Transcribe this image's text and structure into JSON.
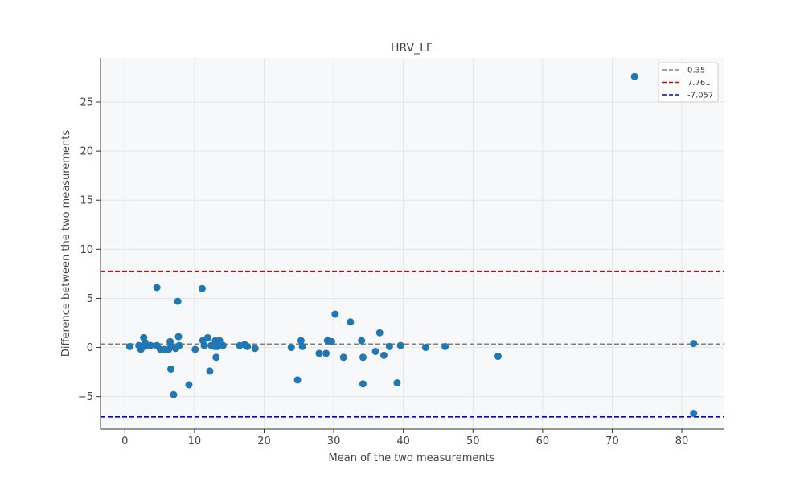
{
  "chart_data": {
    "type": "scatter",
    "title": "HRV_LF",
    "xlabel": "Mean of the two measurements",
    "ylabel": "Difference between the two measurements",
    "xlim": [
      -3.5,
      86
    ],
    "ylim": [
      -8.3,
      29.5
    ],
    "xticks": [
      0,
      10,
      20,
      30,
      40,
      50,
      60,
      70,
      80
    ],
    "yticks": [
      -5,
      0,
      5,
      10,
      15,
      20,
      25
    ],
    "ytick_labels": [
      "−5",
      "0",
      "5",
      "10",
      "15",
      "20",
      "25"
    ],
    "grid": true,
    "legend_position": "top-right",
    "point_color": "#1f77b4",
    "series": [
      {
        "x": [
          0.7,
          2.0,
          2.3,
          2.5,
          2.7,
          2.9,
          3.2,
          3.7,
          4.6,
          4.6,
          5.1,
          5.7,
          6.3,
          6.5,
          6.6,
          6.6,
          7.0,
          7.3,
          7.6,
          7.7,
          7.8,
          9.2,
          10.1,
          11.1,
          11.2,
          11.4,
          11.9,
          12.2,
          12.4,
          12.9,
          13.0,
          13.1,
          13.3,
          13.6,
          14.1,
          16.5,
          17.2,
          17.6,
          18.7,
          23.9,
          24.8,
          25.3,
          25.5,
          27.9,
          28.9,
          29.1,
          29.7,
          30.2,
          31.4,
          32.4,
          34.0,
          34.2,
          34.2,
          36.0,
          36.6,
          37.2,
          38.0,
          39.1,
          39.6,
          43.2,
          46.0,
          53.6,
          73.2,
          81.7,
          81.7
        ],
        "y": [
          0.1,
          0.2,
          -0.2,
          0.0,
          1.0,
          0.5,
          0.2,
          0.2,
          6.1,
          0.2,
          -0.2,
          -0.2,
          -0.2,
          0.6,
          0.1,
          -2.2,
          -4.8,
          -0.1,
          4.7,
          1.1,
          0.2,
          -3.8,
          -0.2,
          6.0,
          0.7,
          0.2,
          1.0,
          -2.4,
          0.2,
          0.1,
          0.7,
          -1.0,
          0.1,
          0.7,
          0.2,
          0.2,
          0.3,
          0.1,
          -0.1,
          0.0,
          -3.3,
          0.7,
          0.1,
          -0.6,
          -0.6,
          0.7,
          0.6,
          3.4,
          -1.0,
          2.6,
          0.7,
          -1.0,
          -3.7,
          -0.4,
          1.5,
          -0.8,
          0.1,
          -3.6,
          0.2,
          0.0,
          0.1,
          -0.9,
          27.6,
          0.4,
          -6.7
        ]
      }
    ],
    "lines": [
      {
        "label": "0.35",
        "value": 0.35,
        "color": "#808080"
      },
      {
        "label": "7.761",
        "value": 7.761,
        "color": "#e00000"
      },
      {
        "label": "-7.057",
        "value": -7.057,
        "color": "#0000e0"
      }
    ]
  }
}
